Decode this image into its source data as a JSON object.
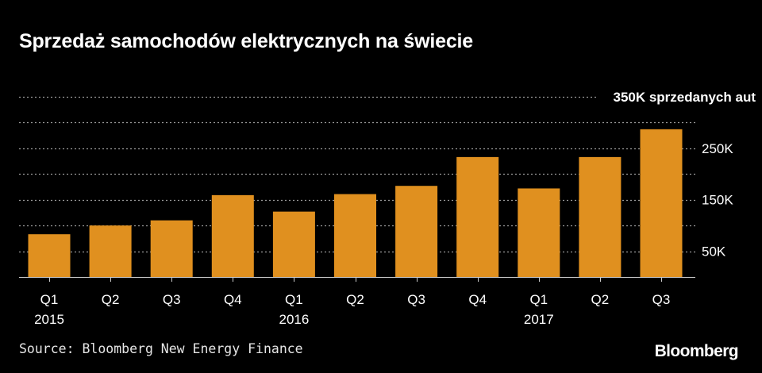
{
  "title": "Sprzedaż samochodów elektrycznych na świecie",
  "source": "Source: Bloomberg New Energy Finance",
  "logo": "Bloomberg",
  "colors": {
    "background": "#000000",
    "bar": "#E0901F",
    "grid": "#9a9a9a",
    "text": "#ffffff"
  },
  "chart_data": {
    "type": "bar",
    "title": "Sprzedaż samochodów elektrycznych na świecie",
    "categories": [
      "Q1",
      "Q2",
      "Q3",
      "Q4",
      "Q1",
      "Q2",
      "Q3",
      "Q4",
      "Q1",
      "Q2",
      "Q3"
    ],
    "year_labels": [
      {
        "label": "2015",
        "index": 0
      },
      {
        "label": "2016",
        "index": 4
      },
      {
        "label": "2017",
        "index": 8
      }
    ],
    "values": [
      83000,
      100000,
      110000,
      159000,
      127000,
      161000,
      177000,
      233000,
      172000,
      233000,
      287000
    ],
    "ylim": [
      0,
      350000
    ],
    "ytick_values": [
      50000,
      150000,
      250000,
      350000
    ],
    "ytick_labels": [
      "50K",
      "150K",
      "250K",
      "350K sprzedanych aut"
    ],
    "grid_values": [
      50000,
      100000,
      150000,
      200000,
      250000,
      300000,
      350000
    ],
    "grid": true,
    "legend": "none"
  }
}
